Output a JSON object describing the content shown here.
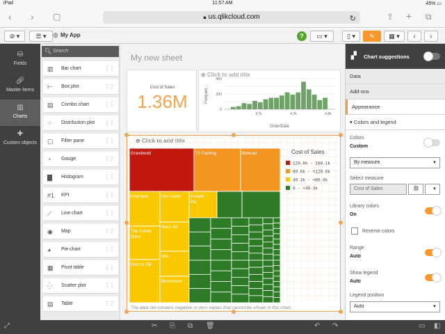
{
  "status": {
    "device": "iPad",
    "time": "11:57 AM",
    "battery": "45%"
  },
  "browser": {
    "url": "us.qlikcloud.com"
  },
  "app": {
    "name": "My App"
  },
  "rail": [
    {
      "label": "Fields",
      "icon": "database-icon"
    },
    {
      "label": "Master items",
      "icon": "link-icon"
    },
    {
      "label": "Charts",
      "icon": "bar-chart-icon"
    },
    {
      "label": "Custom objects",
      "icon": "puzzle-icon"
    }
  ],
  "chart_list": {
    "search_placeholder": "Search",
    "items": [
      {
        "label": "Bar chart",
        "icon": "bar-chart-icon"
      },
      {
        "label": "Box plot",
        "icon": "box-plot-icon"
      },
      {
        "label": "Combo chart",
        "icon": "combo-chart-icon"
      },
      {
        "label": "Distribution plot",
        "icon": "distribution-plot-icon"
      },
      {
        "label": "Filter pane",
        "icon": "filter-pane-icon"
      },
      {
        "label": "Gauge",
        "icon": "gauge-icon"
      },
      {
        "label": "Histogram",
        "icon": "histogram-icon"
      },
      {
        "label": "KPI",
        "icon": "kpi-icon"
      },
      {
        "label": "Line chart",
        "icon": "line-chart-icon"
      },
      {
        "label": "Map",
        "icon": "map-icon"
      },
      {
        "label": "Pie chart",
        "icon": "pie-chart-icon"
      },
      {
        "label": "Pivot table",
        "icon": "pivot-table-icon"
      },
      {
        "label": "Scatter plot",
        "icon": "scatter-plot-icon"
      },
      {
        "label": "Table",
        "icon": "table-icon"
      }
    ]
  },
  "sheet": {
    "title": "My new sheet",
    "kpi": {
      "label": "Cost of Sales",
      "value": "1.36M",
      "color": "#f8a34c"
    },
    "histogram": {
      "title": "Click to add title",
      "ylabel": "Frequen...",
      "xlabel": "OrderDate",
      "yticks": [
        "400",
        "200",
        "0"
      ],
      "xticks": [
        "4.7k",
        "4.7k",
        "4.8k"
      ]
    },
    "treemap": {
      "title": "Click to add title",
      "legend_title": "Cost of Sales",
      "legend": [
        {
          "label": "120.8k - 160.1k",
          "color": "#c0170f"
        },
        {
          "label": "80.6k - <120.8k",
          "color": "#f49421"
        },
        {
          "label": "40.3k - <80.6k",
          "color": "#f9c800"
        },
        {
          "label": "0 - <40.3k",
          "color": "#2d7a27"
        }
      ],
      "labels": [
        "Grandwold",
        "Th Fashing",
        "Boterad",
        "Champes",
        "Don Baldo",
        "Robald Pie",
        "Warp AG",
        "The Corner Store",
        "Vite",
        "Emtron GB",
        "Boomsaich"
      ],
      "note": "The data set contains negative or zero values that cannot be shown in this chart."
    }
  },
  "chart_data": {
    "type": "bar",
    "title": "",
    "xlabel": "OrderDate",
    "ylabel": "Frequen...",
    "ylim": [
      0,
      400
    ],
    "x": [
      1,
      2,
      3,
      4,
      5,
      6,
      7,
      8,
      9,
      10,
      11,
      12,
      13,
      14,
      15,
      16,
      17,
      18
    ],
    "values": [
      30,
      40,
      80,
      70,
      110,
      90,
      130,
      150,
      150,
      180,
      220,
      190,
      220,
      360,
      260,
      190,
      120,
      150
    ],
    "bar_color": "#6fa267",
    "grid": true
  },
  "right_panel": {
    "suggestions_label": "Chart suggestions",
    "nav": [
      "Data",
      "Add-ons",
      "Appearance"
    ],
    "section": "Colors and legend",
    "colors_label": "Colors",
    "colors_value": "Custom",
    "by_measure": "By measure",
    "select_measure_label": "Select measure",
    "measure_value": "Cost of Sales",
    "library_colors_label": "Library colors",
    "library_colors_value": "On",
    "reverse_colors": "Reverse colors",
    "range_label": "Range",
    "range_value": "Auto",
    "show_legend_label": "Show legend",
    "show_legend_value": "Auto",
    "legend_position_label": "Legend position",
    "legend_position_value": "Auto"
  }
}
